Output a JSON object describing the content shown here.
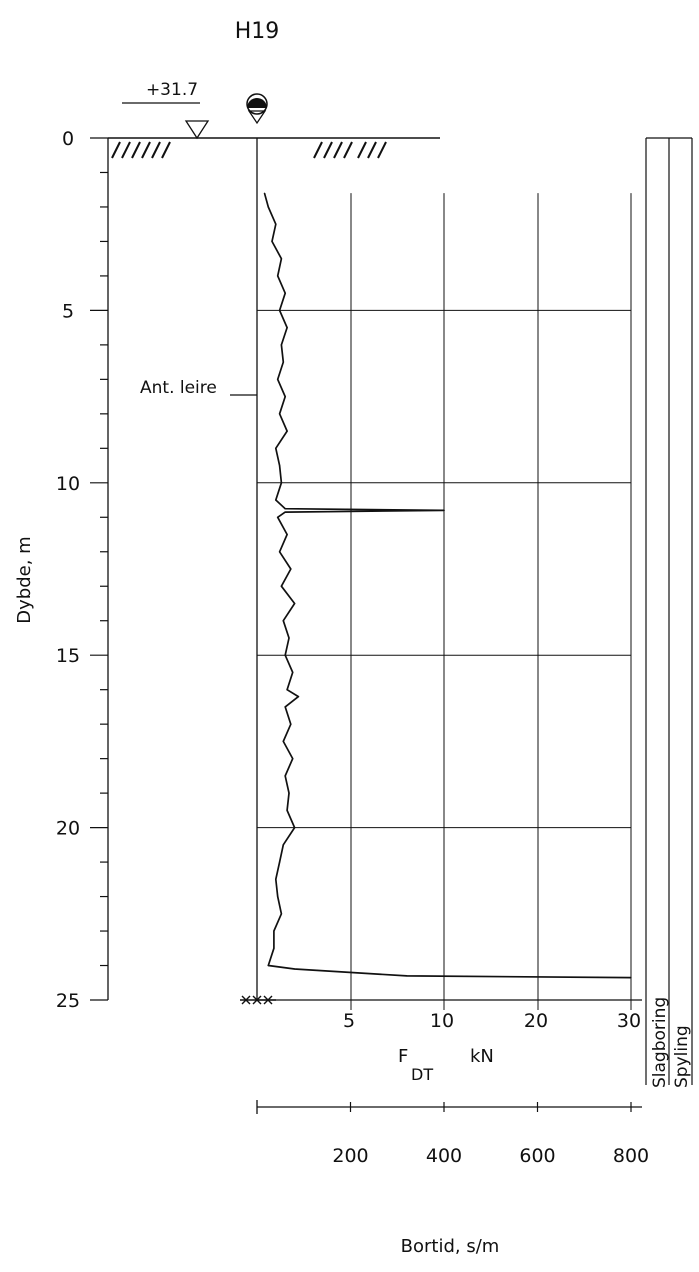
{
  "chart_data": {
    "type": "line",
    "title": "H19",
    "elevation_label": "+31.7",
    "ylabel": "Dybde, m",
    "ylim": [
      0,
      25
    ],
    "y_ticks": [
      "0",
      "5",
      "10",
      "15",
      "20",
      "25"
    ],
    "x_force": {
      "unit_main": "F",
      "unit_sub": "DT",
      "unit_kN": "kN",
      "ticks": [
        "5",
        "10",
        "20",
        "30"
      ]
    },
    "x_time": {
      "label": "Bortid, s/m",
      "ticks": [
        "200",
        "400",
        "600",
        "800"
      ]
    },
    "annotation": "Ant. leire",
    "columns": [
      "Slagboring",
      "Spyling"
    ],
    "series": [
      {
        "depth": [
          1.6,
          2.0,
          2.5,
          3.0,
          3.5,
          4.0,
          4.5,
          5.0,
          5.5,
          6.0,
          6.5,
          7.0,
          7.5,
          8.0,
          8.5,
          9.0,
          9.5,
          10.0,
          10.5,
          10.75,
          10.8,
          10.85,
          11.0,
          11.5,
          12.0,
          12.5,
          13.0,
          13.5,
          14.0,
          14.5,
          15.0,
          15.5,
          16.0,
          16.2,
          16.5,
          17.0,
          17.5,
          18.0,
          18.5,
          19.0,
          19.5,
          20.0,
          20.5,
          21.0,
          21.5,
          22.0,
          22.5,
          23.0,
          23.5,
          24.0,
          24.1,
          24.3,
          24.35
        ],
        "force_kN": [
          0.4,
          0.6,
          1.0,
          0.8,
          1.3,
          1.1,
          1.5,
          1.2,
          1.6,
          1.3,
          1.4,
          1.1,
          1.5,
          1.2,
          1.6,
          1.0,
          1.2,
          1.3,
          1.0,
          1.5,
          10.0,
          1.5,
          1.1,
          1.6,
          1.2,
          1.8,
          1.3,
          2.0,
          1.4,
          1.7,
          1.5,
          1.9,
          1.6,
          2.2,
          1.5,
          1.8,
          1.4,
          1.9,
          1.5,
          1.7,
          1.6,
          2.0,
          1.4,
          1.2,
          1.0,
          1.1,
          1.3,
          0.9,
          0.9,
          0.6,
          2.0,
          8.0,
          30.0
        ]
      }
    ]
  }
}
